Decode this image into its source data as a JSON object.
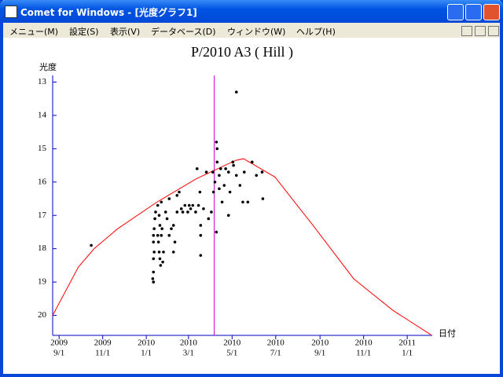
{
  "window": {
    "title": "Comet for Windows - [光度グラフ1]",
    "menu": [
      "メニュー(M)",
      "設定(S)",
      "表示(V)",
      "データベース(D)",
      "ウィンドウ(W)",
      "ヘルプ(H)"
    ]
  },
  "chart_data": {
    "type": "scatter",
    "title": "P/2010 A3 ( Hill )",
    "y_label": "光度",
    "x_label": "日付",
    "xlim": [
      "2009-08-23",
      "2011-02-05"
    ],
    "xticks": [
      {
        "value": "2009-09-01",
        "label": "9/1"
      },
      {
        "value": "2009-11-01",
        "label": "11/1"
      },
      {
        "value": "2010-01-01",
        "label": "1/1"
      },
      {
        "value": "2010-03-01",
        "label": "3/1"
      },
      {
        "value": "2010-05-01",
        "label": "5/1"
      },
      {
        "value": "2010-07-01",
        "label": "7/1"
      },
      {
        "value": "2010-09-01",
        "label": "9/1"
      },
      {
        "value": "2010-11-01",
        "label": "11/1"
      },
      {
        "value": "2011-01-01",
        "label": "1/1"
      }
    ],
    "xtick_years": [
      "2009",
      "2009",
      "2010",
      "2010",
      "2010",
      "2010",
      "2010",
      "2010",
      "2011"
    ],
    "ylim": [
      12.8,
      20.6
    ],
    "y_reversed": true,
    "yticks": [
      13,
      14,
      15,
      16,
      17,
      18,
      19,
      20
    ],
    "axis_color": "#0000c0",
    "marker_line": {
      "x": "2010-04-06",
      "color": "#cc00cc"
    },
    "curve": {
      "color": "#ff0000",
      "x": [
        "2009-08-23",
        "2009-09-28",
        "2009-10-20",
        "2009-11-22",
        "2010-01-16",
        "2010-03-12",
        "2010-05-06",
        "2010-05-17",
        "2010-06-30",
        "2010-08-24",
        "2010-10-18",
        "2010-12-12",
        "2011-02-03"
      ],
      "y": [
        20.0,
        18.55,
        18.0,
        17.4,
        16.6,
        15.9,
        15.35,
        15.3,
        15.85,
        17.35,
        18.9,
        19.85,
        20.58
      ]
    },
    "points": {
      "color": "#000000",
      "x": [
        "2009-10-16",
        "2010-01-11",
        "2010-01-11",
        "2010-01-12",
        "2010-01-11",
        "2010-01-11",
        "2010-01-12",
        "2010-01-13",
        "2010-01-14",
        "2010-01-17",
        "2010-01-19",
        "2010-01-20",
        "2010-01-17",
        "2010-01-18",
        "2010-01-19",
        "2010-01-20",
        "2010-01-21",
        "2010-01-22",
        "2010-01-23",
        "2010-01-10",
        "2010-01-11",
        "2010-01-24",
        "2010-01-25",
        "2010-01-22",
        "2010-01-28",
        "2010-01-30",
        "2010-02-02",
        "2010-02-02",
        "2010-02-05",
        "2010-02-08",
        "2010-02-10",
        "2010-02-08",
        "2010-02-13",
        "2010-02-13",
        "2010-02-16",
        "2010-02-19",
        "2010-02-21",
        "2010-02-24",
        "2010-02-28",
        "2010-03-02",
        "2010-03-04",
        "2010-03-07",
        "2010-03-11",
        "2010-03-13",
        "2010-03-15",
        "2010-03-17",
        "2010-03-18",
        "2010-03-18",
        "2010-03-18",
        "2010-03-22",
        "2010-03-26",
        "2010-03-29",
        "2010-04-02",
        "2010-04-04",
        "2010-04-05",
        "2010-04-07",
        "2010-04-09",
        "2010-04-10",
        "2010-04-10",
        "2010-04-09",
        "2010-04-13",
        "2010-04-13",
        "2010-04-15",
        "2010-04-17",
        "2010-04-20",
        "2010-04-22",
        "2010-04-26",
        "2010-04-26",
        "2010-04-28",
        "2010-05-02",
        "2010-05-03",
        "2010-05-07",
        "2010-05-07",
        "2010-05-12",
        "2010-05-16",
        "2010-05-18",
        "2010-05-23",
        "2010-05-29",
        "2010-06-04",
        "2010-06-12",
        "2010-06-13"
      ],
      "y": [
        17.9,
        18.7,
        18.3,
        18.1,
        17.8,
        17.6,
        17.4,
        17.1,
        16.9,
        16.7,
        17.0,
        17.3,
        17.6,
        17.8,
        18.1,
        18.3,
        18.5,
        17.6,
        17.4,
        18.9,
        19.0,
        18.4,
        18.1,
        16.6,
        16.9,
        17.1,
        16.5,
        17.6,
        17.4,
        18.1,
        17.8,
        17.3,
        16.4,
        16.9,
        16.3,
        16.8,
        16.9,
        16.7,
        16.9,
        16.7,
        16.8,
        16.7,
        16.9,
        15.6,
        16.7,
        16.3,
        17.3,
        17.6,
        18.2,
        16.8,
        15.7,
        17.1,
        16.9,
        15.7,
        16.3,
        16.0,
        14.8,
        15.0,
        15.4,
        17.5,
        15.8,
        16.2,
        15.6,
        16.6,
        16.1,
        15.6,
        15.7,
        17.0,
        16.3,
        15.4,
        15.5,
        13.3,
        15.8,
        16.1,
        16.6,
        15.7,
        16.6,
        15.4,
        15.8,
        15.7,
        16.5
      ]
    }
  }
}
